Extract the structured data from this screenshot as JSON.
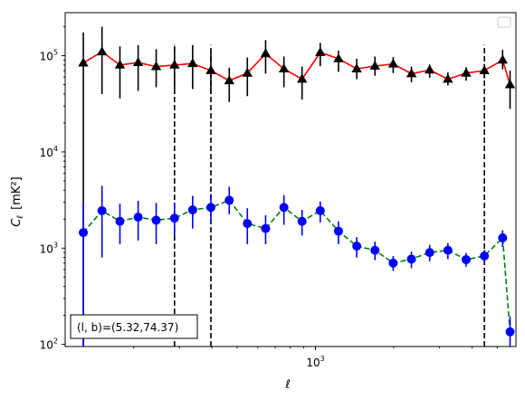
{
  "chart_data": {
    "type": "line",
    "scale": {
      "x": "log",
      "y": "log"
    },
    "xlabel": "ℓ",
    "ylabel_base": "C",
    "ylabel_sub": "ℓ",
    "ylabel_units": "[mK²]",
    "xlim": [
      109,
      5900
    ],
    "ylim": [
      95,
      280000
    ],
    "yticks": [
      {
        "value": 100,
        "base": "10",
        "exp": "2"
      },
      {
        "value": 1000,
        "base": "10",
        "exp": "3"
      },
      {
        "value": 10000,
        "base": "10",
        "exp": "4"
      },
      {
        "value": 100000,
        "base": "10",
        "exp": "5"
      }
    ],
    "xticks": [
      {
        "value": 1000,
        "base": "10",
        "exp": "3"
      }
    ],
    "x": [
      128,
      151,
      177,
      208,
      244,
      287,
      337,
      396,
      466,
      547,
      643,
      756,
      888,
      1043,
      1226,
      1441,
      1693,
      1990,
      2339,
      2749,
      3230,
      3796,
      4462,
      5243,
      5600
    ],
    "series": [
      {
        "name": "",
        "marker": "triangle",
        "color": "#000000",
        "line_color": "#ff0000",
        "line_style": "solid",
        "errorbar_color": "#000000",
        "values": [
          84000,
          110000,
          80000,
          85000,
          77000,
          80000,
          83000,
          70000,
          55000,
          66000,
          105000,
          73000,
          57000,
          108000,
          93000,
          73000,
          78000,
          82000,
          65000,
          71000,
          57000,
          66000,
          70000,
          90000,
          50000
        ],
        "err_low": [
          84000,
          70000,
          44000,
          42000,
          30000,
          40000,
          38000,
          30000,
          22000,
          28000,
          40000,
          26000,
          22000,
          30000,
          25000,
          16000,
          16000,
          16000,
          12000,
          12000,
          8000,
          11000,
          12000,
          18000,
          22000
        ],
        "err_high": [
          90000,
          90000,
          45000,
          44000,
          40000,
          46000,
          46000,
          40000,
          20000,
          30000,
          40000,
          25000,
          20000,
          28000,
          20000,
          20000,
          20000,
          15000,
          12000,
          10000,
          10000,
          10000,
          12000,
          25000,
          20000
        ]
      },
      {
        "name": "",
        "marker": "circle",
        "color": "#0000ff",
        "line_color": "#008000",
        "line_style": "dashed",
        "errorbar_color": "#0000ff",
        "values": [
          1450,
          2450,
          1900,
          2100,
          1950,
          2050,
          2500,
          2650,
          3150,
          1800,
          1600,
          2650,
          1900,
          2450,
          1500,
          1050,
          950,
          700,
          770,
          900,
          950,
          760,
          830,
          1280,
          135
        ],
        "err_low": [
          1449,
          1650,
          800,
          900,
          850,
          700,
          900,
          800,
          900,
          700,
          500,
          900,
          550,
          600,
          400,
          250,
          200,
          120,
          150,
          170,
          180,
          120,
          130,
          250,
          60
        ],
        "err_high": [
          1500,
          2000,
          1000,
          1000,
          1000,
          900,
          1000,
          1000,
          1200,
          800,
          600,
          900,
          600,
          600,
          400,
          250,
          220,
          130,
          150,
          180,
          180,
          130,
          130,
          250,
          60
        ]
      }
    ],
    "vlines": [
      {
        "x": 287,
        "y_from": 95,
        "y_to": 130000
      },
      {
        "x": 396,
        "y_from": 95,
        "y_to": 130000
      },
      {
        "x": 4462,
        "y_from": 95,
        "y_to": 130000
      }
    ],
    "legend": {
      "placement": "upper right",
      "entries": []
    },
    "annotation": {
      "text": "(l, b)=(5.32,74.37)",
      "placement": "lower left"
    }
  }
}
